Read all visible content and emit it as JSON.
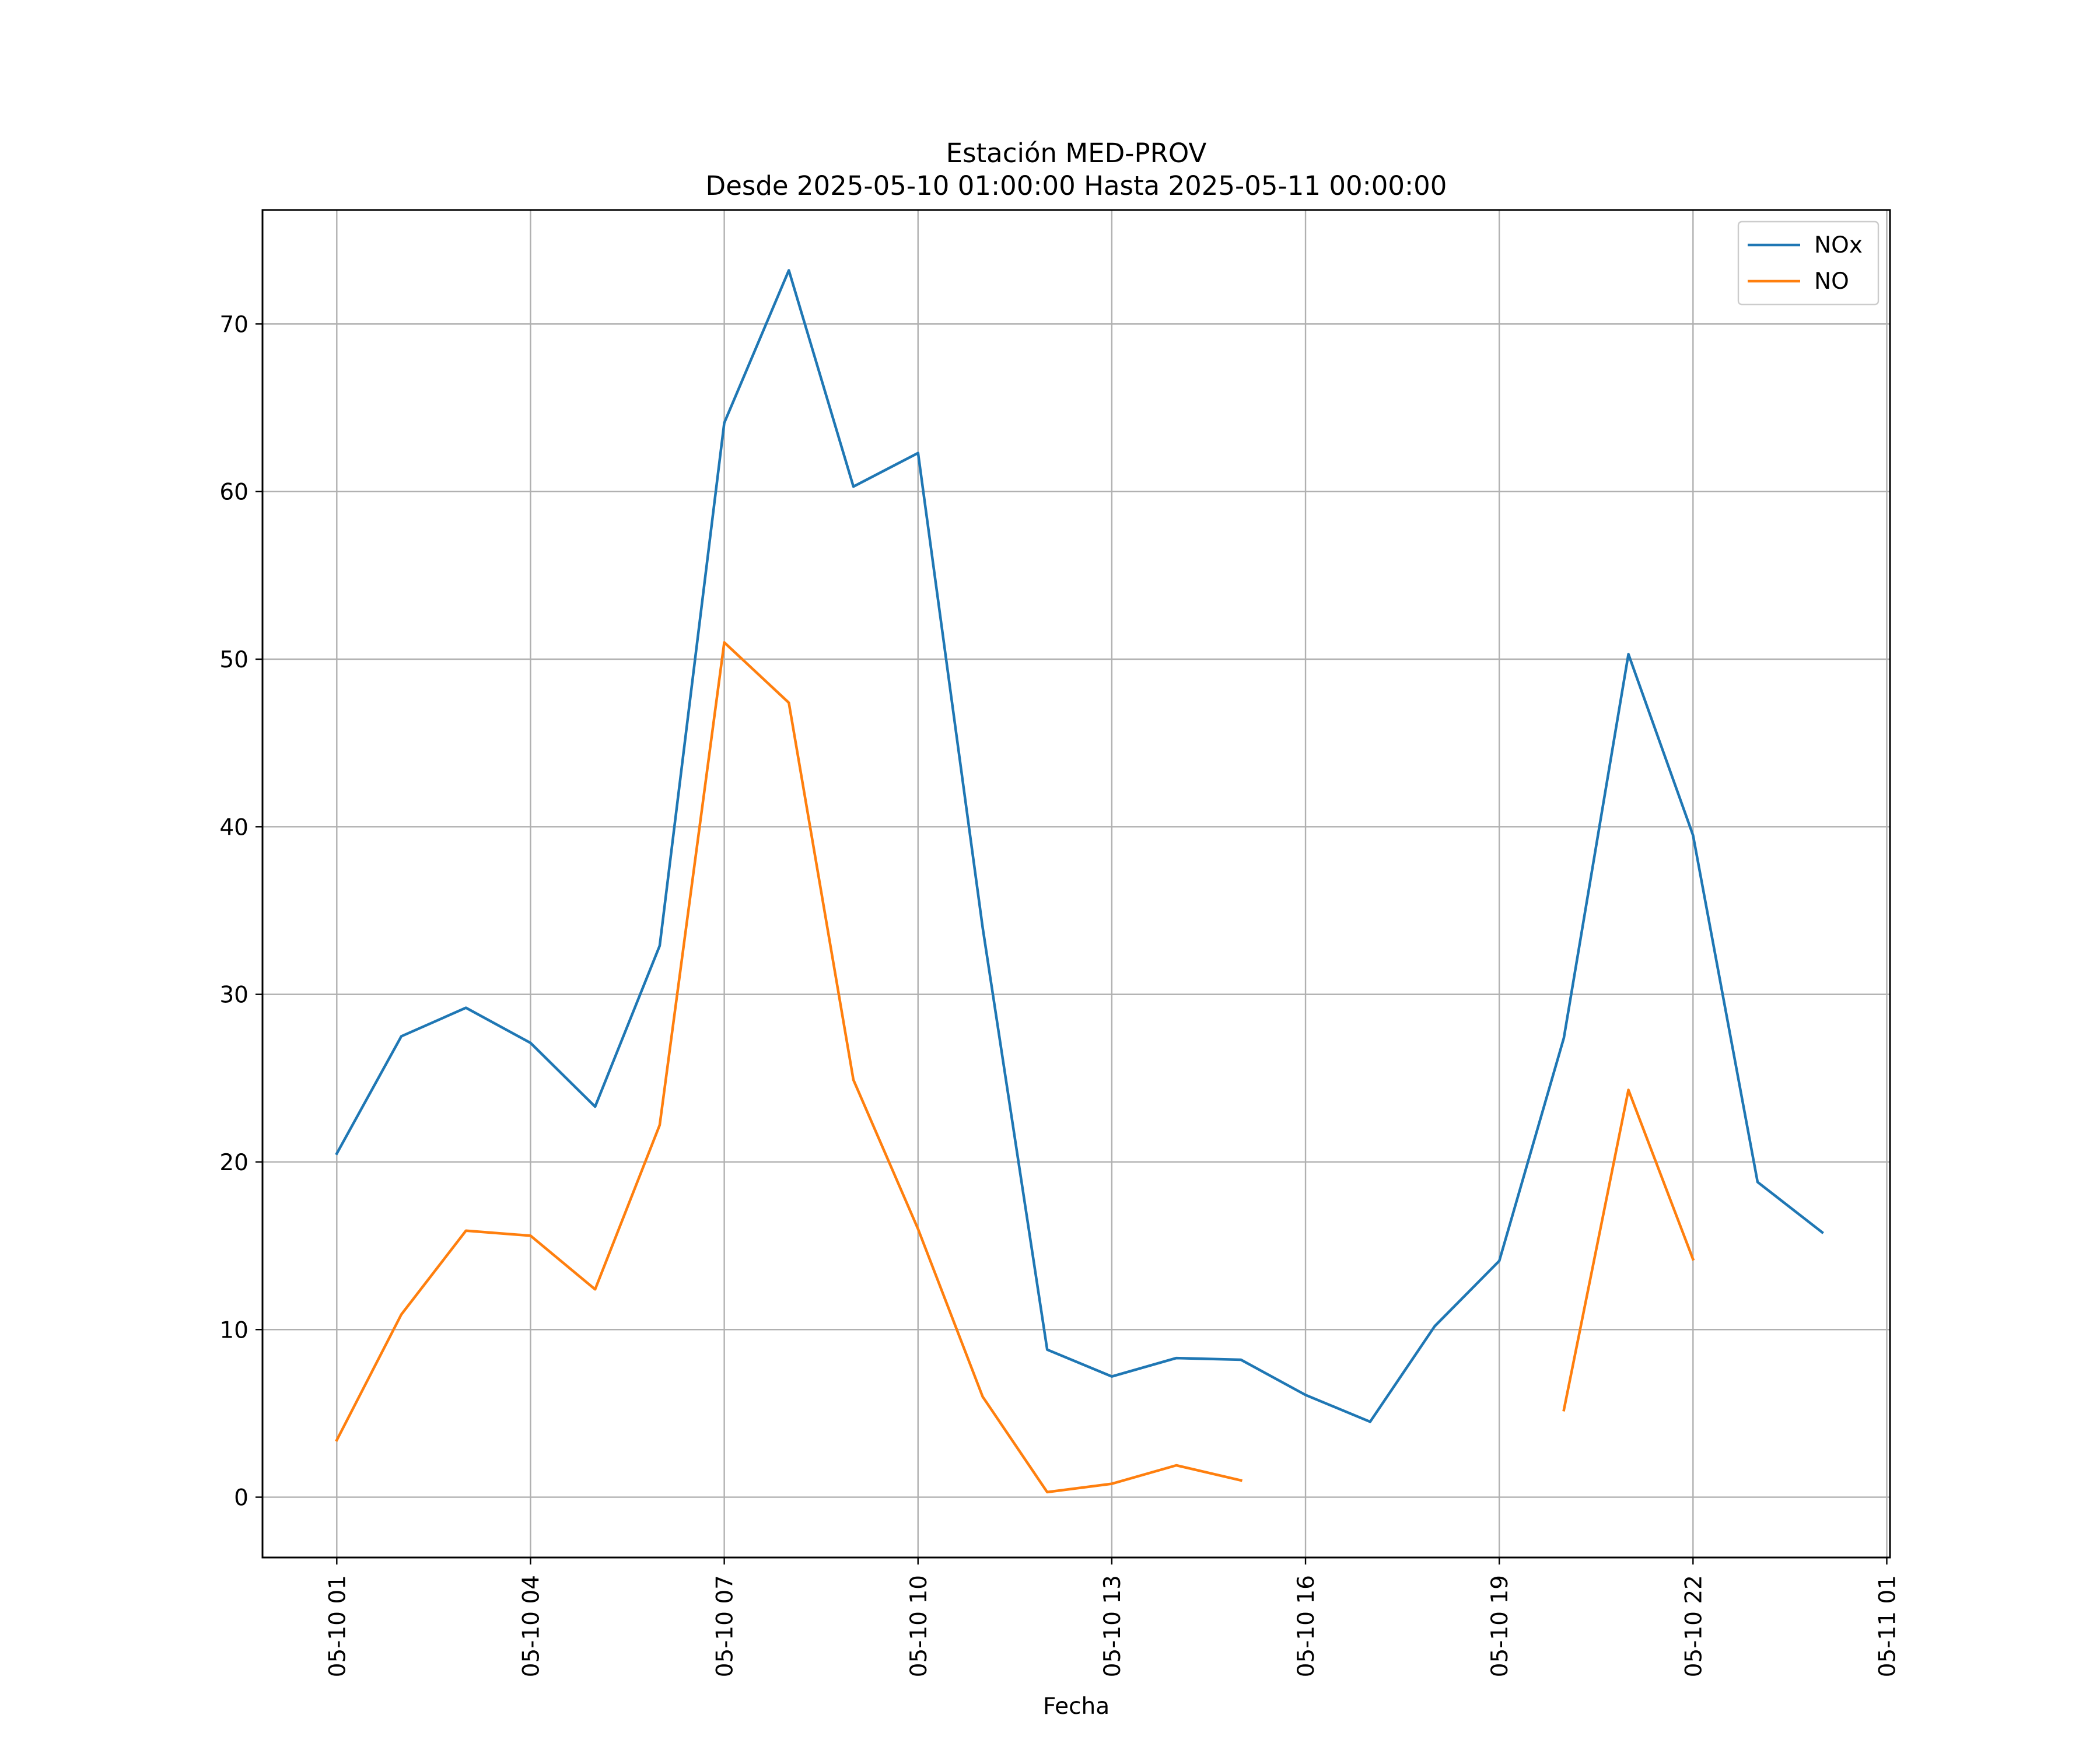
{
  "chart_data": {
    "type": "line",
    "title": "Estación MED-PROV",
    "subtitle": "Desde 2025-05-10 01:00:00 Hasta 2025-05-11 00:00:00",
    "xlabel": "Fecha",
    "ylabel": "",
    "x": [
      "2025-05-10 01:00",
      "2025-05-10 02:00",
      "2025-05-10 03:00",
      "2025-05-10 04:00",
      "2025-05-10 05:00",
      "2025-05-10 06:00",
      "2025-05-10 07:00",
      "2025-05-10 08:00",
      "2025-05-10 09:00",
      "2025-05-10 10:00",
      "2025-05-10 11:00",
      "2025-05-10 12:00",
      "2025-05-10 13:00",
      "2025-05-10 14:00",
      "2025-05-10 15:00",
      "2025-05-10 16:00",
      "2025-05-10 17:00",
      "2025-05-10 18:00",
      "2025-05-10 19:00",
      "2025-05-10 20:00",
      "2025-05-10 21:00",
      "2025-05-10 22:00",
      "2025-05-10 23:00",
      "2025-05-11 00:00"
    ],
    "series": [
      {
        "name": "NOx",
        "color": "#1f77b4",
        "values": [
          20.5,
          27.5,
          29.2,
          27.1,
          23.3,
          32.9,
          64.1,
          73.2,
          60.3,
          62.3,
          34.0,
          8.8,
          7.2,
          8.3,
          8.2,
          6.1,
          4.5,
          10.2,
          14.1,
          27.4,
          50.3,
          39.5,
          18.8,
          15.8
        ]
      },
      {
        "name": "NO",
        "color": "#ff7f0e",
        "values": [
          3.4,
          10.9,
          15.9,
          15.6,
          12.4,
          22.2,
          51.0,
          47.4,
          24.9,
          16.0,
          6.0,
          0.3,
          0.8,
          1.9,
          1.0,
          null,
          null,
          null,
          null,
          5.2,
          24.3,
          14.2,
          null,
          null
        ]
      }
    ],
    "xticks": [
      {
        "value": "2025-05-10 01:00",
        "label": "05-10 01"
      },
      {
        "value": "2025-05-10 04:00",
        "label": "05-10 04"
      },
      {
        "value": "2025-05-10 07:00",
        "label": "05-10 07"
      },
      {
        "value": "2025-05-10 10:00",
        "label": "05-10 10"
      },
      {
        "value": "2025-05-10 13:00",
        "label": "05-10 13"
      },
      {
        "value": "2025-05-10 16:00",
        "label": "05-10 16"
      },
      {
        "value": "2025-05-10 19:00",
        "label": "05-10 19"
      },
      {
        "value": "2025-05-10 22:00",
        "label": "05-10 22"
      },
      {
        "value": "2025-05-11 01:00",
        "label": "05-11 01"
      }
    ],
    "yticks": [
      0,
      10,
      20,
      30,
      40,
      50,
      60,
      70
    ],
    "xlim": [
      "2025-05-09 23:51",
      "2025-05-11 01:03"
    ],
    "ylim": [
      -3.6,
      76.8
    ],
    "grid": true,
    "legend_position": "upper right"
  }
}
